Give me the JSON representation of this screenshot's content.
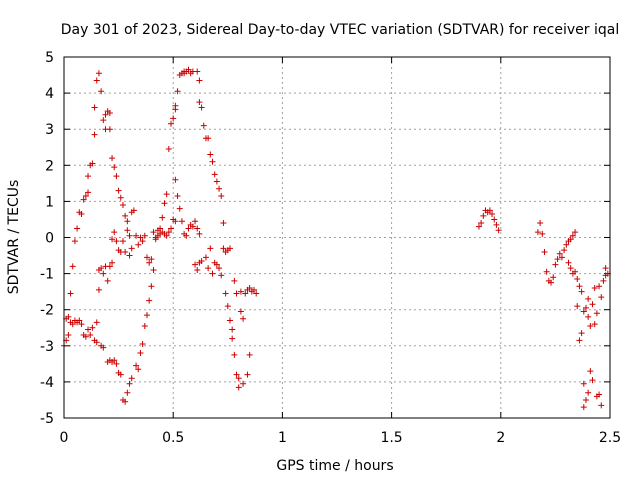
{
  "chart_data": {
    "type": "scatter",
    "title": "Day 301 of 2023, Sidereal Day-to-day VTEC variation (SDTVAR) for receiver iqal",
    "xlabel": "GPS time / hours",
    "ylabel": "SDTVAR / TECUs",
    "xlim": [
      0,
      2.5
    ],
    "ylim": [
      -5,
      5
    ],
    "xticks": [
      0,
      0.5,
      1,
      1.5,
      2,
      2.5
    ],
    "xtick_labels": [
      "0",
      "0.5",
      "1",
      "1.5",
      "2",
      "2.5"
    ],
    "yticks": [
      -5,
      -4,
      -3,
      -2,
      -1,
      0,
      1,
      2,
      3,
      4,
      5
    ],
    "ytick_labels": [
      "-5",
      "-4",
      "-3",
      "-2",
      "-1",
      "0",
      "1",
      "2",
      "3",
      "4",
      "5"
    ],
    "grid": true,
    "marker": "plus",
    "color": "#cc0000",
    "series": [
      {
        "name": "SDTVAR",
        "points": [
          [
            0.0,
            -3.0
          ],
          [
            0.01,
            -2.85
          ],
          [
            0.01,
            -2.25
          ],
          [
            0.02,
            -2.2
          ],
          [
            0.02,
            -2.7
          ],
          [
            0.03,
            -2.35
          ],
          [
            0.03,
            -1.55
          ],
          [
            0.04,
            -2.4
          ],
          [
            0.04,
            -0.8
          ],
          [
            0.05,
            -0.1
          ],
          [
            0.05,
            -2.3
          ],
          [
            0.06,
            0.25
          ],
          [
            0.06,
            -2.35
          ],
          [
            0.07,
            0.7
          ],
          [
            0.07,
            -2.3
          ],
          [
            0.08,
            0.65
          ],
          [
            0.08,
            -2.4
          ],
          [
            0.09,
            1.05
          ],
          [
            0.09,
            -2.7
          ],
          [
            0.1,
            1.15
          ],
          [
            0.1,
            -2.75
          ],
          [
            0.11,
            1.25
          ],
          [
            0.11,
            -2.55
          ],
          [
            0.11,
            1.7
          ],
          [
            0.12,
            2.0
          ],
          [
            0.12,
            -2.7
          ],
          [
            0.13,
            2.05
          ],
          [
            0.13,
            -2.5
          ],
          [
            0.14,
            2.85
          ],
          [
            0.14,
            -2.85
          ],
          [
            0.14,
            3.6
          ],
          [
            0.15,
            4.35
          ],
          [
            0.15,
            -2.35
          ],
          [
            0.15,
            -2.9
          ],
          [
            0.16,
            4.55
          ],
          [
            0.16,
            -1.45
          ],
          [
            0.17,
            -0.85
          ],
          [
            0.16,
            -0.9
          ],
          [
            0.17,
            4.05
          ],
          [
            0.17,
            -3.0
          ],
          [
            0.18,
            3.25
          ],
          [
            0.18,
            -1.0
          ],
          [
            0.18,
            -3.05
          ],
          [
            0.19,
            3.0
          ],
          [
            0.19,
            -0.8
          ],
          [
            0.19,
            3.4
          ],
          [
            0.2,
            3.5
          ],
          [
            0.2,
            -1.2
          ],
          [
            0.2,
            -3.45
          ],
          [
            0.21,
            3.45
          ],
          [
            0.21,
            -3.4
          ],
          [
            0.21,
            -0.8
          ],
          [
            0.21,
            3.0
          ],
          [
            0.22,
            -0.7
          ],
          [
            0.22,
            -3.45
          ],
          [
            0.22,
            2.2
          ],
          [
            0.22,
            -0.05
          ],
          [
            0.23,
            1.95
          ],
          [
            0.23,
            0.15
          ],
          [
            0.23,
            -3.4
          ],
          [
            0.24,
            1.7
          ],
          [
            0.24,
            -0.1
          ],
          [
            0.24,
            -3.5
          ],
          [
            0.25,
            1.3
          ],
          [
            0.25,
            -0.35
          ],
          [
            0.25,
            -3.75
          ],
          [
            0.26,
            1.1
          ],
          [
            0.26,
            -0.4
          ],
          [
            0.26,
            -3.8
          ],
          [
            0.27,
            0.9
          ],
          [
            0.27,
            -0.1
          ],
          [
            0.27,
            -4.5
          ],
          [
            0.28,
            0.6
          ],
          [
            0.28,
            -0.4
          ],
          [
            0.28,
            -4.55
          ],
          [
            0.29,
            0.45
          ],
          [
            0.29,
            0.2
          ],
          [
            0.29,
            -4.3
          ],
          [
            0.3,
            0.05
          ],
          [
            0.3,
            -0.5
          ],
          [
            0.3,
            -4.05
          ],
          [
            0.31,
            0.7
          ],
          [
            0.31,
            -0.3
          ],
          [
            0.31,
            -3.9
          ],
          [
            0.32,
            0.75
          ],
          [
            0.33,
            -3.55
          ],
          [
            0.33,
            0.05
          ],
          [
            0.34,
            -3.65
          ],
          [
            0.34,
            -0.2
          ],
          [
            0.35,
            -3.2
          ],
          [
            0.35,
            0.0
          ],
          [
            0.36,
            -2.95
          ],
          [
            0.36,
            -0.1
          ],
          [
            0.37,
            -2.45
          ],
          [
            0.37,
            0.05
          ],
          [
            0.38,
            -2.15
          ],
          [
            0.38,
            -0.55
          ],
          [
            0.39,
            -1.75
          ],
          [
            0.39,
            -0.7
          ],
          [
            0.4,
            -1.35
          ],
          [
            0.4,
            -0.6
          ],
          [
            0.41,
            -0.9
          ],
          [
            0.41,
            0.15
          ],
          [
            0.42,
            -0.05
          ],
          [
            0.42,
            0.0
          ],
          [
            0.43,
            0.2
          ],
          [
            0.43,
            0.05
          ],
          [
            0.44,
            0.1
          ],
          [
            0.44,
            0.25
          ],
          [
            0.45,
            0.15
          ],
          [
            0.45,
            0.55
          ],
          [
            0.46,
            0.1
          ],
          [
            0.46,
            0.95
          ],
          [
            0.47,
            1.2
          ],
          [
            0.47,
            0.05
          ],
          [
            0.48,
            2.45
          ],
          [
            0.48,
            0.15
          ],
          [
            0.49,
            3.15
          ],
          [
            0.49,
            0.25
          ],
          [
            0.5,
            3.3
          ],
          [
            0.5,
            0.5
          ],
          [
            0.51,
            3.55
          ],
          [
            0.51,
            0.45
          ],
          [
            0.51,
            3.65
          ],
          [
            0.51,
            1.6
          ],
          [
            0.52,
            4.05
          ],
          [
            0.52,
            1.15
          ],
          [
            0.53,
            4.5
          ],
          [
            0.53,
            0.8
          ],
          [
            0.54,
            4.55
          ],
          [
            0.54,
            0.45
          ],
          [
            0.55,
            4.6
          ],
          [
            0.55,
            0.1
          ],
          [
            0.55,
            4.55
          ],
          [
            0.56,
            0.05
          ],
          [
            0.56,
            4.6
          ],
          [
            0.57,
            0.25
          ],
          [
            0.57,
            4.65
          ],
          [
            0.58,
            0.35
          ],
          [
            0.58,
            4.55
          ],
          [
            0.59,
            0.3
          ],
          [
            0.59,
            4.6
          ],
          [
            0.6,
            0.45
          ],
          [
            0.6,
            -0.75
          ],
          [
            0.61,
            4.6
          ],
          [
            0.61,
            0.25
          ],
          [
            0.61,
            -0.9
          ],
          [
            0.62,
            4.35
          ],
          [
            0.62,
            0.1
          ],
          [
            0.62,
            -0.7
          ],
          [
            0.62,
            3.75
          ],
          [
            0.63,
            3.6
          ],
          [
            0.63,
            -0.65
          ],
          [
            0.64,
            3.1
          ],
          [
            0.65,
            2.75
          ],
          [
            0.65,
            -0.55
          ],
          [
            0.66,
            2.75
          ],
          [
            0.66,
            -0.85
          ],
          [
            0.67,
            2.3
          ],
          [
            0.67,
            -0.3
          ],
          [
            0.68,
            2.1
          ],
          [
            0.68,
            -1.0
          ],
          [
            0.69,
            1.75
          ],
          [
            0.69,
            -0.7
          ],
          [
            0.7,
            1.55
          ],
          [
            0.7,
            -0.75
          ],
          [
            0.71,
            1.35
          ],
          [
            0.71,
            -0.85
          ],
          [
            0.72,
            1.15
          ],
          [
            0.72,
            -1.05
          ],
          [
            0.73,
            0.4
          ],
          [
            0.73,
            -0.3
          ],
          [
            0.74,
            -0.4
          ],
          [
            0.74,
            -1.55
          ],
          [
            0.75,
            -0.35
          ],
          [
            0.75,
            -1.9
          ],
          [
            0.76,
            -0.3
          ],
          [
            0.76,
            -2.3
          ],
          [
            0.77,
            -2.55
          ],
          [
            0.77,
            -2.8
          ],
          [
            0.78,
            -1.2
          ],
          [
            0.78,
            -3.25
          ],
          [
            0.79,
            -1.55
          ],
          [
            0.79,
            -3.8
          ],
          [
            0.8,
            -3.9
          ],
          [
            0.8,
            -4.15
          ],
          [
            0.81,
            -1.5
          ],
          [
            0.81,
            -2.05
          ],
          [
            0.82,
            -4.05
          ],
          [
            0.82,
            -2.25
          ],
          [
            0.83,
            -1.55
          ],
          [
            0.84,
            -1.45
          ],
          [
            0.84,
            -3.8
          ],
          [
            0.85,
            -1.4
          ],
          [
            0.85,
            -3.25
          ],
          [
            0.86,
            -1.5
          ],
          [
            0.87,
            -1.45
          ],
          [
            0.88,
            -1.55
          ],
          [
            1.9,
            0.3
          ],
          [
            1.91,
            0.4
          ],
          [
            1.92,
            0.6
          ],
          [
            1.93,
            0.75
          ],
          [
            1.94,
            0.7
          ],
          [
            1.95,
            0.75
          ],
          [
            1.96,
            0.65
          ],
          [
            1.97,
            0.5
          ],
          [
            1.98,
            0.35
          ],
          [
            1.99,
            0.2
          ],
          [
            2.17,
            0.15
          ],
          [
            2.18,
            0.4
          ],
          [
            2.19,
            0.1
          ],
          [
            2.2,
            -0.4
          ],
          [
            2.21,
            -0.95
          ],
          [
            2.22,
            -1.2
          ],
          [
            2.23,
            -1.25
          ],
          [
            2.24,
            -1.1
          ],
          [
            2.25,
            -0.75
          ],
          [
            2.26,
            -0.6
          ],
          [
            2.27,
            -0.45
          ],
          [
            2.28,
            -0.55
          ],
          [
            2.29,
            -0.35
          ],
          [
            2.3,
            -0.2
          ],
          [
            2.31,
            -0.1
          ],
          [
            2.32,
            -0.05
          ],
          [
            2.33,
            0.05
          ],
          [
            2.34,
            0.15
          ],
          [
            2.31,
            -0.7
          ],
          [
            2.32,
            -0.85
          ],
          [
            2.33,
            -1.0
          ],
          [
            2.34,
            -0.95
          ],
          [
            2.35,
            -1.15
          ],
          [
            2.35,
            -1.9
          ],
          [
            2.36,
            -2.85
          ],
          [
            2.36,
            -1.35
          ],
          [
            2.37,
            -2.65
          ],
          [
            2.37,
            -1.5
          ],
          [
            2.38,
            -4.7
          ],
          [
            2.38,
            -4.05
          ],
          [
            2.38,
            -2.05
          ],
          [
            2.39,
            -1.95
          ],
          [
            2.39,
            -4.5
          ],
          [
            2.4,
            -4.3
          ],
          [
            2.4,
            -2.2
          ],
          [
            2.4,
            -1.7
          ],
          [
            2.41,
            -3.7
          ],
          [
            2.41,
            -2.45
          ],
          [
            2.42,
            -3.95
          ],
          [
            2.42,
            -1.85
          ],
          [
            2.43,
            -2.4
          ],
          [
            2.43,
            -1.4
          ],
          [
            2.44,
            -4.4
          ],
          [
            2.44,
            -2.1
          ],
          [
            2.45,
            -4.35
          ],
          [
            2.45,
            -1.35
          ],
          [
            2.46,
            -4.65
          ],
          [
            2.46,
            -1.65
          ],
          [
            2.47,
            -1.2
          ],
          [
            2.48,
            -1.05
          ],
          [
            2.48,
            -0.85
          ],
          [
            2.49,
            -1.0
          ]
        ]
      }
    ]
  }
}
